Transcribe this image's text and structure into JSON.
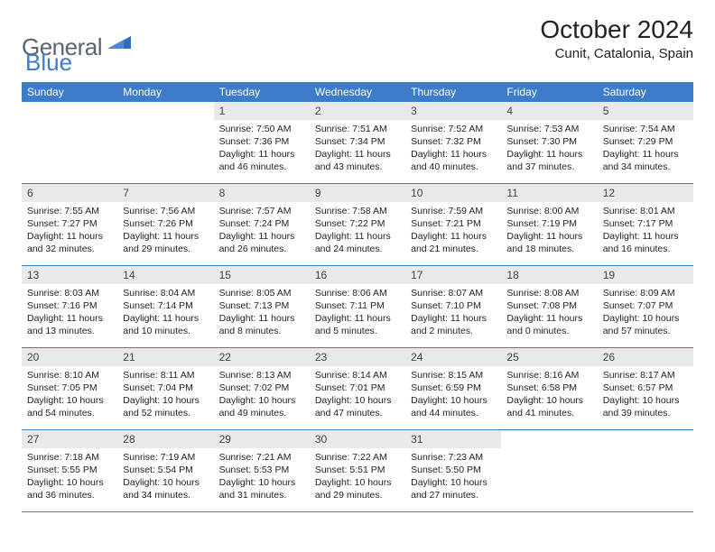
{
  "brand": {
    "word1": "General",
    "word2": "Blue",
    "text_color": "#5a6570",
    "accent_color": "#3d7cc9"
  },
  "title": "October 2024",
  "location": "Cunit, Catalonia, Spain",
  "header_bg": "#3d7cc9",
  "header_fg": "#ffffff",
  "daynum_bg": "#e8e9ea",
  "border_color": "#3d7cc9",
  "weekdays": [
    "Sunday",
    "Monday",
    "Tuesday",
    "Wednesday",
    "Thursday",
    "Friday",
    "Saturday"
  ],
  "first_weekday_index": 2,
  "days": [
    {
      "n": 1,
      "sunrise": "7:50 AM",
      "sunset": "7:36 PM",
      "daylight": "11 hours and 46 minutes."
    },
    {
      "n": 2,
      "sunrise": "7:51 AM",
      "sunset": "7:34 PM",
      "daylight": "11 hours and 43 minutes."
    },
    {
      "n": 3,
      "sunrise": "7:52 AM",
      "sunset": "7:32 PM",
      "daylight": "11 hours and 40 minutes."
    },
    {
      "n": 4,
      "sunrise": "7:53 AM",
      "sunset": "7:30 PM",
      "daylight": "11 hours and 37 minutes."
    },
    {
      "n": 5,
      "sunrise": "7:54 AM",
      "sunset": "7:29 PM",
      "daylight": "11 hours and 34 minutes."
    },
    {
      "n": 6,
      "sunrise": "7:55 AM",
      "sunset": "7:27 PM",
      "daylight": "11 hours and 32 minutes."
    },
    {
      "n": 7,
      "sunrise": "7:56 AM",
      "sunset": "7:26 PM",
      "daylight": "11 hours and 29 minutes."
    },
    {
      "n": 8,
      "sunrise": "7:57 AM",
      "sunset": "7:24 PM",
      "daylight": "11 hours and 26 minutes."
    },
    {
      "n": 9,
      "sunrise": "7:58 AM",
      "sunset": "7:22 PM",
      "daylight": "11 hours and 24 minutes."
    },
    {
      "n": 10,
      "sunrise": "7:59 AM",
      "sunset": "7:21 PM",
      "daylight": "11 hours and 21 minutes."
    },
    {
      "n": 11,
      "sunrise": "8:00 AM",
      "sunset": "7:19 PM",
      "daylight": "11 hours and 18 minutes."
    },
    {
      "n": 12,
      "sunrise": "8:01 AM",
      "sunset": "7:17 PM",
      "daylight": "11 hours and 16 minutes."
    },
    {
      "n": 13,
      "sunrise": "8:03 AM",
      "sunset": "7:16 PM",
      "daylight": "11 hours and 13 minutes."
    },
    {
      "n": 14,
      "sunrise": "8:04 AM",
      "sunset": "7:14 PM",
      "daylight": "11 hours and 10 minutes."
    },
    {
      "n": 15,
      "sunrise": "8:05 AM",
      "sunset": "7:13 PM",
      "daylight": "11 hours and 8 minutes."
    },
    {
      "n": 16,
      "sunrise": "8:06 AM",
      "sunset": "7:11 PM",
      "daylight": "11 hours and 5 minutes."
    },
    {
      "n": 17,
      "sunrise": "8:07 AM",
      "sunset": "7:10 PM",
      "daylight": "11 hours and 2 minutes."
    },
    {
      "n": 18,
      "sunrise": "8:08 AM",
      "sunset": "7:08 PM",
      "daylight": "11 hours and 0 minutes."
    },
    {
      "n": 19,
      "sunrise": "8:09 AM",
      "sunset": "7:07 PM",
      "daylight": "10 hours and 57 minutes."
    },
    {
      "n": 20,
      "sunrise": "8:10 AM",
      "sunset": "7:05 PM",
      "daylight": "10 hours and 54 minutes."
    },
    {
      "n": 21,
      "sunrise": "8:11 AM",
      "sunset": "7:04 PM",
      "daylight": "10 hours and 52 minutes."
    },
    {
      "n": 22,
      "sunrise": "8:13 AM",
      "sunset": "7:02 PM",
      "daylight": "10 hours and 49 minutes."
    },
    {
      "n": 23,
      "sunrise": "8:14 AM",
      "sunset": "7:01 PM",
      "daylight": "10 hours and 47 minutes."
    },
    {
      "n": 24,
      "sunrise": "8:15 AM",
      "sunset": "6:59 PM",
      "daylight": "10 hours and 44 minutes."
    },
    {
      "n": 25,
      "sunrise": "8:16 AM",
      "sunset": "6:58 PM",
      "daylight": "10 hours and 41 minutes."
    },
    {
      "n": 26,
      "sunrise": "8:17 AM",
      "sunset": "6:57 PM",
      "daylight": "10 hours and 39 minutes."
    },
    {
      "n": 27,
      "sunrise": "7:18 AM",
      "sunset": "5:55 PM",
      "daylight": "10 hours and 36 minutes."
    },
    {
      "n": 28,
      "sunrise": "7:19 AM",
      "sunset": "5:54 PM",
      "daylight": "10 hours and 34 minutes."
    },
    {
      "n": 29,
      "sunrise": "7:21 AM",
      "sunset": "5:53 PM",
      "daylight": "10 hours and 31 minutes."
    },
    {
      "n": 30,
      "sunrise": "7:22 AM",
      "sunset": "5:51 PM",
      "daylight": "10 hours and 29 minutes."
    },
    {
      "n": 31,
      "sunrise": "7:23 AM",
      "sunset": "5:50 PM",
      "daylight": "10 hours and 27 minutes."
    }
  ],
  "labels": {
    "sunrise": "Sunrise:",
    "sunset": "Sunset:",
    "daylight": "Daylight:"
  }
}
